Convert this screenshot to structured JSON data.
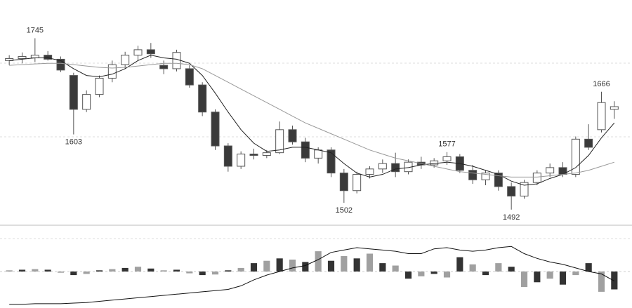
{
  "chart_data": [
    {
      "type": "candlestick",
      "open": [
        1712,
        1715,
        1716,
        1720,
        1714,
        1690,
        1640,
        1662,
        1686,
        1706,
        1720,
        1728,
        1705,
        1700,
        1700,
        1676,
        1636,
        1586,
        1556,
        1574,
        1572,
        1576,
        1610,
        1592,
        1568,
        1580,
        1546,
        1520,
        1544,
        1552,
        1560,
        1548,
        1562,
        1558,
        1564,
        1570,
        1550,
        1536,
        1546,
        1526,
        1512,
        1532,
        1546,
        1554,
        1544,
        1596,
        1610,
        1640
      ],
      "high": [
        1720,
        1724,
        1745,
        1726,
        1718,
        1694,
        1668,
        1690,
        1712,
        1725,
        1734,
        1738,
        1712,
        1728,
        1705,
        1680,
        1640,
        1590,
        1578,
        1582,
        1580,
        1622,
        1616,
        1598,
        1584,
        1584,
        1552,
        1548,
        1556,
        1566,
        1576,
        1566,
        1570,
        1568,
        1577,
        1574,
        1558,
        1550,
        1550,
        1532,
        1536,
        1550,
        1560,
        1562,
        1600,
        1618,
        1666,
        1652
      ],
      "low": [
        1705,
        1708,
        1710,
        1712,
        1695,
        1603,
        1636,
        1658,
        1680,
        1700,
        1712,
        1716,
        1692,
        1696,
        1672,
        1630,
        1580,
        1548,
        1552,
        1566,
        1568,
        1574,
        1588,
        1562,
        1560,
        1540,
        1502,
        1516,
        1538,
        1546,
        1540,
        1544,
        1552,
        1554,
        1558,
        1546,
        1530,
        1528,
        1520,
        1492,
        1508,
        1528,
        1540,
        1540,
        1540,
        1580,
        1606,
        1626
      ],
      "close": [
        1715,
        1718,
        1720,
        1714,
        1698,
        1640,
        1662,
        1686,
        1706,
        1720,
        1728,
        1722,
        1700,
        1724,
        1676,
        1636,
        1586,
        1556,
        1574,
        1572,
        1576,
        1610,
        1592,
        1568,
        1580,
        1546,
        1520,
        1544,
        1552,
        1560,
        1548,
        1562,
        1558,
        1564,
        1570,
        1550,
        1536,
        1546,
        1526,
        1512,
        1532,
        1546,
        1554,
        1544,
        1596,
        1584,
        1650,
        1644
      ],
      "up_color": "#ffffff",
      "down_color": "#3a3a3a",
      "edge_color": "#555555",
      "series": [
        {
          "color": "#222222",
          "values": [
            1712,
            1714,
            1716,
            1716,
            1712,
            1700,
            1690,
            1688,
            1692,
            1700,
            1712,
            1720,
            1716,
            1714,
            1708,
            1690,
            1664,
            1636,
            1610,
            1590,
            1578,
            1580,
            1584,
            1584,
            1580,
            1576,
            1560,
            1546,
            1540,
            1544,
            1552,
            1554,
            1558,
            1560,
            1562,
            1560,
            1556,
            1550,
            1544,
            1534,
            1528,
            1530,
            1538,
            1544,
            1554,
            1572,
            1598,
            1620
          ]
        },
        {
          "color": "#999999",
          "values": [
            1705,
            1706,
            1707,
            1708,
            1708,
            1706,
            1704,
            1702,
            1701,
            1702,
            1704,
            1706,
            1708,
            1708,
            1706,
            1700,
            1690,
            1680,
            1670,
            1660,
            1650,
            1640,
            1630,
            1620,
            1612,
            1604,
            1596,
            1588,
            1580,
            1574,
            1568,
            1564,
            1560,
            1556,
            1552,
            1548,
            1546,
            1544,
            1542,
            1540,
            1540,
            1540,
            1542,
            1544,
            1546,
            1550,
            1556,
            1562
          ]
        }
      ],
      "ylim": [
        1470,
        1760
      ],
      "annotations": [
        {
          "index": 2,
          "value": 1745,
          "side": "above"
        },
        {
          "index": 5,
          "value": 1603,
          "side": "below"
        },
        {
          "index": 26,
          "value": 1502,
          "side": "below"
        },
        {
          "index": 34,
          "value": 1577,
          "side": "above"
        },
        {
          "index": 39,
          "value": 1492,
          "side": "below"
        },
        {
          "index": 46,
          "value": 1666,
          "side": "above"
        }
      ]
    },
    {
      "type": "histogram-line",
      "values": [
        2,
        3,
        4,
        3,
        -2,
        -6,
        -4,
        2,
        4,
        6,
        8,
        5,
        2,
        3,
        -3,
        -6,
        -5,
        2,
        6,
        14,
        18,
        22,
        20,
        16,
        34,
        18,
        26,
        22,
        30,
        14,
        10,
        -12,
        -8,
        -4,
        -10,
        24,
        12,
        -6,
        14,
        8,
        -26,
        -18,
        -12,
        -22,
        -6,
        14,
        -34,
        -30
      ],
      "colors": [
        "#a0a0a0",
        "#333333"
      ],
      "line": [
        -55,
        -55,
        -54,
        -54,
        -54,
        -53,
        -52,
        -50,
        -48,
        -46,
        -44,
        -42,
        -40,
        -38,
        -36,
        -34,
        -32,
        -30,
        -24,
        -14,
        -6,
        0,
        6,
        10,
        20,
        32,
        36,
        40,
        38,
        36,
        34,
        30,
        30,
        38,
        40,
        36,
        34,
        36,
        40,
        42,
        30,
        22,
        16,
        12,
        6,
        0,
        -4,
        -16
      ],
      "line_color": "#111111",
      "ylim": [
        -60,
        60
      ]
    }
  ]
}
